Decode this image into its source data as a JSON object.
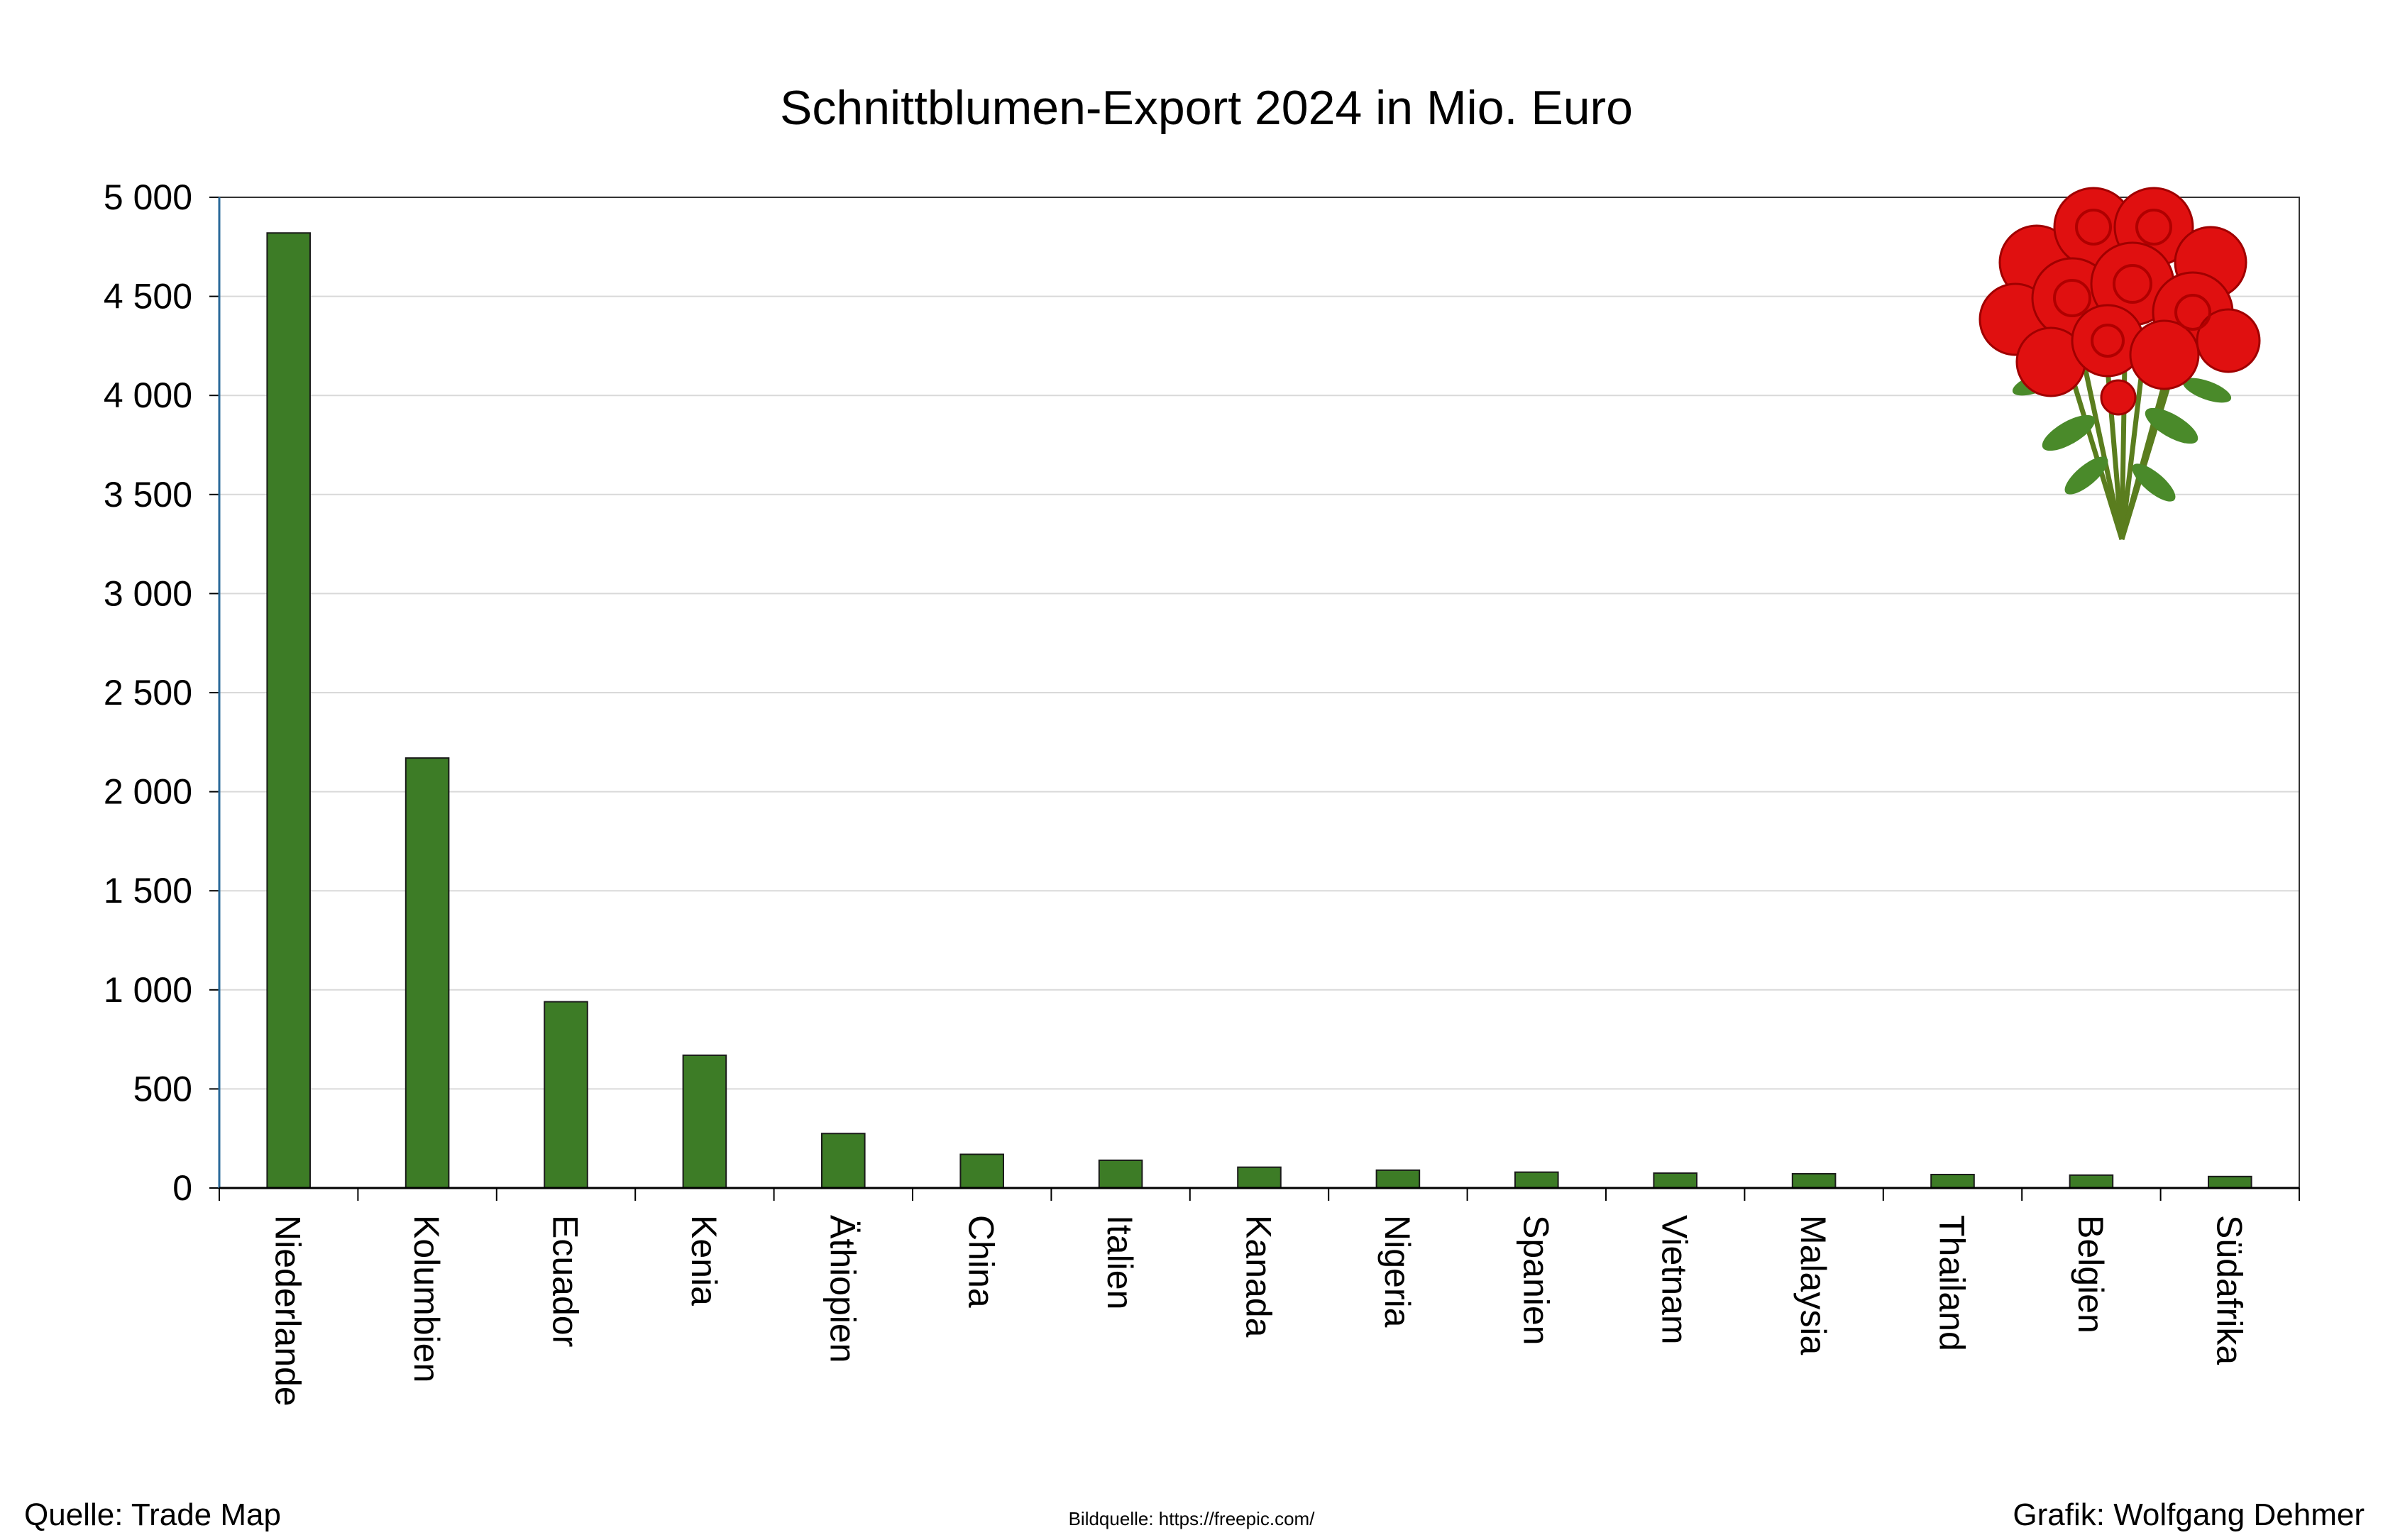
{
  "chart_data": {
    "type": "bar",
    "title": "Schnittblumen-Export 2024 in Mio. Euro",
    "xlabel": "",
    "ylabel": "",
    "ylim": [
      0,
      5000
    ],
    "yticks": [
      0,
      500,
      1000,
      1500,
      2000,
      2500,
      3000,
      3500,
      4000,
      4500,
      5000
    ],
    "ytick_labels": [
      "0",
      "500",
      "1 000",
      "1 500",
      "2 000",
      "2 500",
      "3 000",
      "3 500",
      "4 000",
      "4 500",
      "5 000"
    ],
    "grid": true,
    "categories": [
      "Niederlande",
      "Kolumbien",
      "Ecuador",
      "Kenia",
      "Äthiopien",
      "China",
      "Italien",
      "Kanada",
      "Nigeria",
      "Spanien",
      "Vietnam",
      "Malaysia",
      "Thailand",
      "Belgien",
      "Südafrika"
    ],
    "values": [
      4820,
      2170,
      940,
      670,
      275,
      170,
      140,
      105,
      90,
      80,
      75,
      72,
      68,
      65,
      58
    ],
    "bar_color": "#3d7c26"
  },
  "footer": {
    "source": "Quelle: Trade Map",
    "image_source": "Bildquelle: https://freepic.com/",
    "credit": "Grafik: Wolfgang Dehmer"
  }
}
